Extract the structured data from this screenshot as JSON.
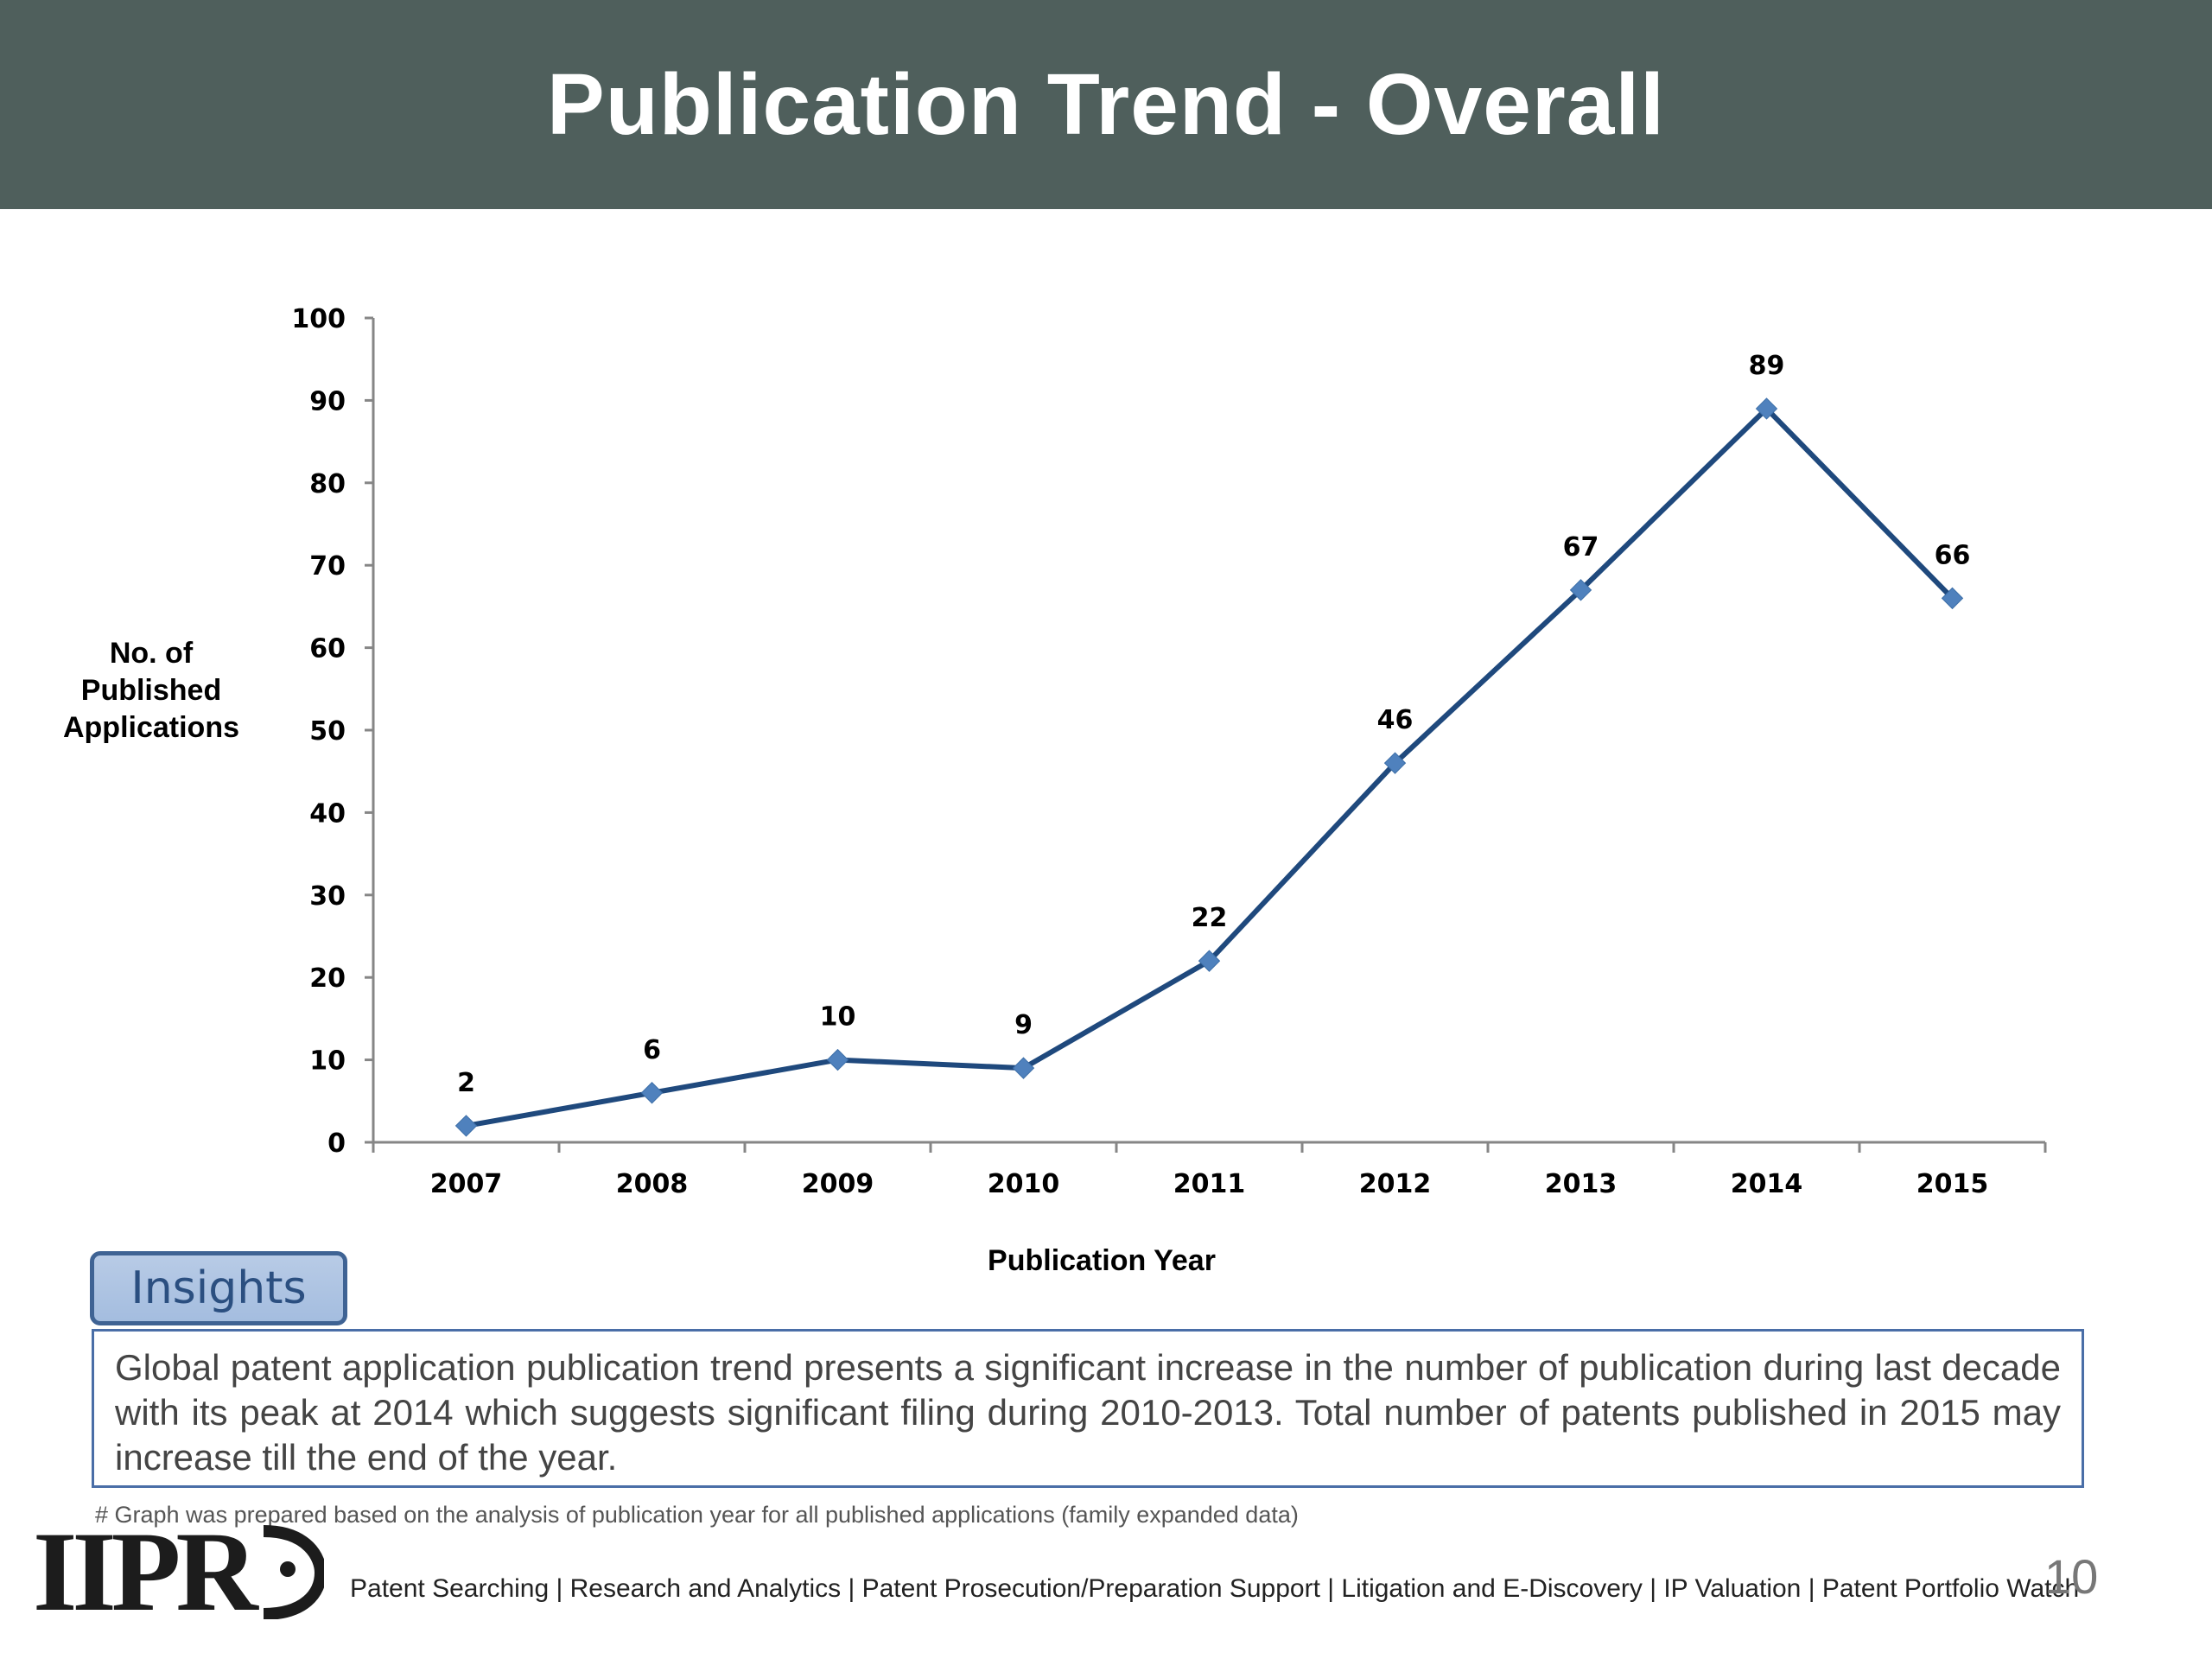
{
  "header": {
    "title": "Publication Trend - Overall"
  },
  "chart_data": {
    "type": "line",
    "categories": [
      "2007",
      "2008",
      "2009",
      "2010",
      "2011",
      "2012",
      "2013",
      "2014",
      "2015"
    ],
    "values": [
      2,
      6,
      10,
      9,
      22,
      46,
      67,
      89,
      66
    ],
    "xlabel": "Publication Year",
    "ylabel": "No. of Published Applications",
    "ylabel_lines": [
      "No. of",
      "Published",
      "Applications"
    ],
    "ylim": [
      0,
      100
    ],
    "yticks": [
      "0",
      "10",
      "20",
      "30",
      "40",
      "50",
      "60",
      "70",
      "80",
      "90",
      "100"
    ],
    "data_labels": true,
    "grid": false,
    "legend": "none",
    "line_color": "#1f497d",
    "marker_color": "#4f81bd"
  },
  "insights": {
    "tab_label": "Insights",
    "text": "Global patent application publication trend presents a significant increase in the number of publication during last decade with its peak at 2014 which suggests significant filing during 2010-2013. Total number of patents published in 2015 may increase till the end of the year."
  },
  "footnote": "# Graph was prepared based on the analysis of publication year for all published applications (family expanded data)",
  "footer": {
    "logo_text": "IIPR",
    "services": "Patent Searching | Research and Analytics | Patent Prosecution/Preparation Support | Litigation and E-Discovery | IP Valuation |  Patent Portfolio Watch",
    "page_number": "10"
  },
  "colors": {
    "header_bg": "#4f5f5c",
    "accent_blue": "#4a6ea7",
    "tab_fill": "#b8cbe6"
  }
}
